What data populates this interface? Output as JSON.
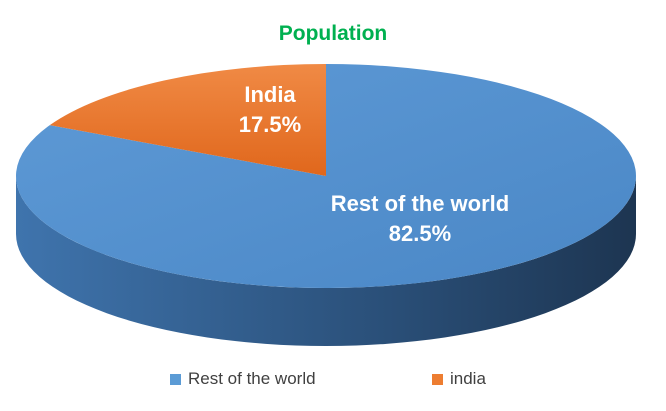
{
  "chart_data": {
    "type": "pie3d",
    "title": "Population",
    "categories": [
      "Rest of the world",
      "india"
    ],
    "data_label_names": [
      "Rest of the world",
      "India"
    ],
    "values": [
      82.5,
      17.5
    ],
    "value_labels": [
      "82.5%",
      "17.5%"
    ],
    "colors": [
      "#5b9bd5",
      "#ed7d31"
    ],
    "legend": "bottom"
  }
}
